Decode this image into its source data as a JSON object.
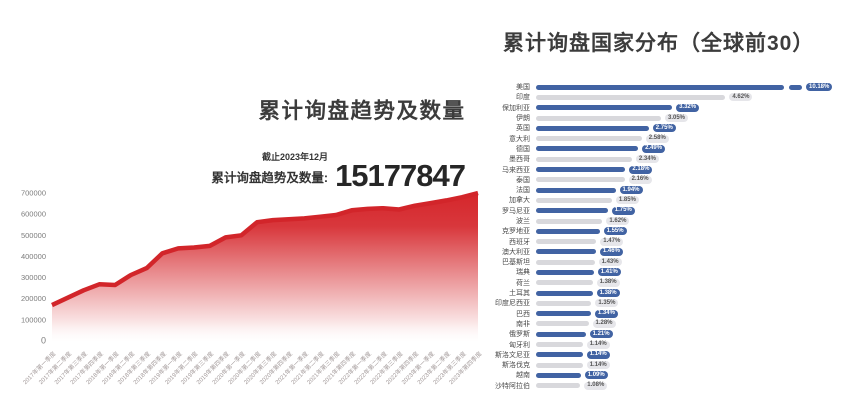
{
  "page": {
    "background": "#ffffff"
  },
  "left_panel": {
    "title": "累计询盘趋势及数量",
    "as_of_label": "截止2023年12月",
    "stat_label": "累计询盘趋势及数量:",
    "stat_value": "15177847"
  },
  "right_panel": {
    "title": "累计询盘国家分布（全球前30）"
  },
  "chart_data": [
    {
      "type": "area",
      "title": "累计询盘趋势及数量",
      "xlabel": "",
      "ylabel": "",
      "ylim": [
        0,
        700000
      ],
      "yticks": [
        0,
        100000,
        200000,
        300000,
        400000,
        500000,
        600000,
        700000
      ],
      "grid": false,
      "line_color": "#d2252a",
      "fill_top_color": "#d5262b",
      "x": [
        "2017年第一季度",
        "2017年第二季度",
        "2017年第三季度",
        "2017年第四季度",
        "2018年第一季度",
        "2018年第二季度",
        "2018年第三季度",
        "2018年第四季度",
        "2019年第一季度",
        "2019年第二季度",
        "2019年第三季度",
        "2019年第四季度",
        "2020年第一季度",
        "2020年第二季度",
        "2020年第三季度",
        "2020年第四季度",
        "2021年第一季度",
        "2021年第二季度",
        "2021年第三季度",
        "2021年第四季度",
        "2022年第一季度",
        "2022年第二季度",
        "2022年第三季度",
        "2022年第四季度",
        "2023年第一季度",
        "2023年第二季度",
        "2023年第三季度",
        "2023年第四季度"
      ],
      "values": [
        170000,
        205000,
        240000,
        268000,
        265000,
        312000,
        345000,
        415000,
        438000,
        442000,
        450000,
        490000,
        500000,
        562000,
        572000,
        576000,
        580000,
        588000,
        596000,
        618000,
        625000,
        628000,
        622000,
        640000,
        652000,
        665000,
        680000,
        700000
      ],
      "annotation": "截止2023年12月 累计询盘趋势及数量: 15177847"
    },
    {
      "type": "bar",
      "orientation": "horizontal",
      "title": "累计询盘国家分布（全球前30）",
      "legend_position": "none",
      "bar_colors_alternate": [
        "#4163a3",
        "#d8d8dc"
      ],
      "first_bar_truncated": true,
      "categories": [
        "美国",
        "印度",
        "保加利亚",
        "伊朗",
        "英国",
        "意大利",
        "德国",
        "墨西哥",
        "马来西亚",
        "泰国",
        "法国",
        "加拿大",
        "罗马尼亚",
        "波兰",
        "克罗地亚",
        "西班牙",
        "澳大利亚",
        "巴基斯坦",
        "瑞典",
        "荷兰",
        "土耳其",
        "印度尼西亚",
        "巴西",
        "南非",
        "俄罗斯",
        "匈牙利",
        "斯洛文尼亚",
        "斯洛伐克",
        "越南",
        "沙特阿拉伯"
      ],
      "values": [
        10.18,
        4.62,
        3.32,
        3.05,
        2.75,
        2.58,
        2.49,
        2.34,
        2.18,
        2.16,
        1.94,
        1.85,
        1.75,
        1.62,
        1.55,
        1.47,
        1.46,
        1.43,
        1.41,
        1.38,
        1.38,
        1.35,
        1.34,
        1.28,
        1.21,
        1.14,
        1.14,
        1.14,
        1.09,
        1.08
      ],
      "labels": [
        "10.18%",
        "4.62%",
        "3.32%",
        "3.05%",
        "2.75%",
        "2.58%",
        "2.49%",
        "2.34%",
        "2.18%",
        "2.16%",
        "1.94%",
        "1.85%",
        "1.75%",
        "1.62%",
        "1.55%",
        "1.47%",
        "1.46%",
        "1.43%",
        "1.41%",
        "1.38%",
        "1.38%",
        "1.35%",
        "1.34%",
        "1.28%",
        "1.21%",
        "1.14%",
        "1.14%",
        "1.14%",
        "1.09%",
        "1.08%"
      ]
    }
  ]
}
